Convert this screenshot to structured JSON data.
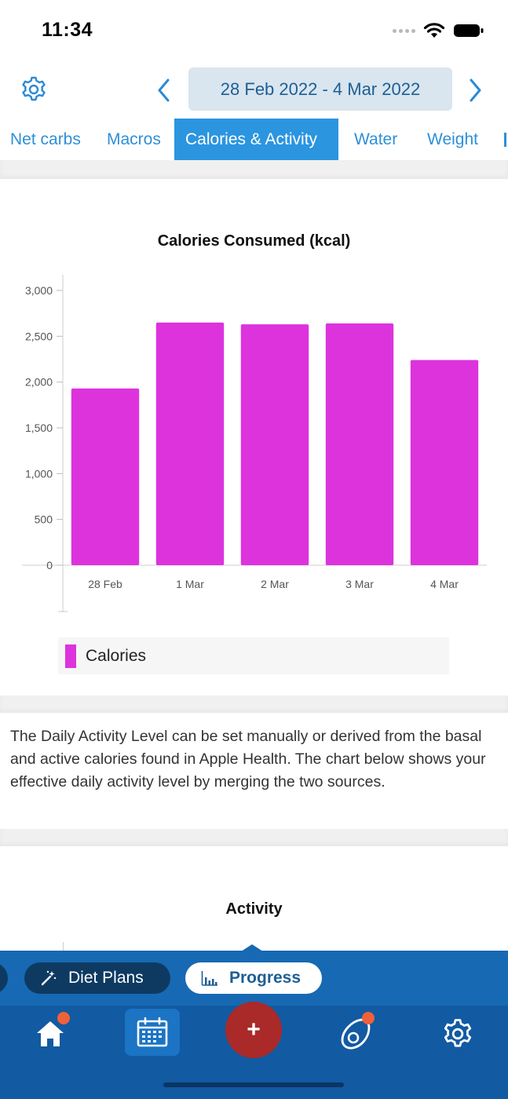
{
  "status_bar": {
    "time": "11:34"
  },
  "header": {
    "date_range": "28 Feb 2022 - 4 Mar 2022"
  },
  "tabs": [
    {
      "label": "Net carbs",
      "active": false
    },
    {
      "label": "Macros",
      "active": false
    },
    {
      "label": "Calories & Activity",
      "active": true
    },
    {
      "label": "Water",
      "active": false
    },
    {
      "label": "Weight",
      "active": false
    }
  ],
  "chart_data": {
    "type": "bar",
    "title": "Calories Consumed (kcal)",
    "categories": [
      "28 Feb",
      "1 Mar",
      "2 Mar",
      "3 Mar",
      "4 Mar"
    ],
    "series": [
      {
        "name": "Calories",
        "values": [
          1930,
          2650,
          2630,
          2640,
          2240
        ],
        "color": "#dd33dd"
      }
    ],
    "yticks": [
      "0",
      "500",
      "1,000",
      "1,500",
      "2,000",
      "2,500",
      "3,000"
    ],
    "ylim": [
      0,
      3000
    ],
    "legend_position": "bottom-left",
    "grid": false
  },
  "info_text": "The Daily Activity Level can be set manually or derived from the basal and active calories found in Apple Health. The chart below shows your effective daily activity level by merging the two sources.",
  "activity_chart": {
    "title": "Activity"
  },
  "switcher": {
    "diet_plans": "Diet Plans",
    "progress": "Progress"
  },
  "bottom_nav": {
    "items": [
      "home-icon",
      "calendar-icon",
      "add-icon",
      "avocado-icon",
      "settings-icon"
    ],
    "add_label": "+"
  },
  "colors": {
    "accent": "#2b95e0",
    "nav": "#125aa2",
    "bar": "#dd33dd",
    "add": "#a92a28",
    "badge": "#f0613a"
  }
}
